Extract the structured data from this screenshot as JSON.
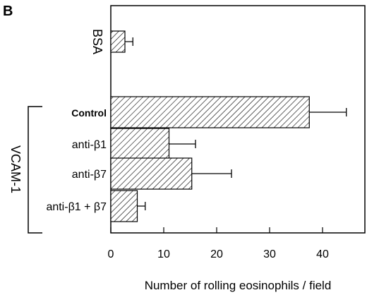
{
  "panel_label": "B",
  "chart_data": {
    "type": "bar",
    "orientation": "horizontal",
    "categories": [
      "BSA",
      "Control",
      "anti-β1",
      "anti-β7",
      "anti-β1 + β7"
    ],
    "values": [
      2.5,
      37.5,
      11,
      15.3,
      5
    ],
    "errors": [
      1.5,
      7,
      5,
      7.5,
      1.5
    ],
    "group_label": "VCAM-1",
    "group_members": [
      "Control",
      "anti-β1",
      "anti-β7",
      "anti-β1 + β7"
    ],
    "xlabel": "Number of rolling eosinophils / field",
    "ylabel": "",
    "xlim": [
      0,
      45
    ],
    "xticks": [
      0,
      10,
      20,
      30,
      40
    ],
    "grid": false,
    "bar_fill": "hatched"
  }
}
